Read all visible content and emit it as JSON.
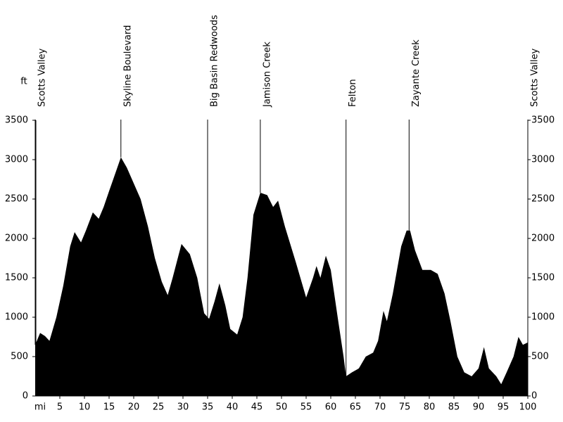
{
  "chart_data": {
    "type": "area",
    "y_label": "ft",
    "x_label": "mi",
    "color": "#000000",
    "xlim": [
      0,
      100
    ],
    "ylim": [
      0,
      3500
    ],
    "xticks": [
      5,
      10,
      15,
      20,
      25,
      30,
      35,
      40,
      45,
      50,
      55,
      60,
      65,
      70,
      75,
      80,
      85,
      90,
      95,
      100
    ],
    "yticks": [
      0,
      500,
      1000,
      1500,
      2000,
      2500,
      3000,
      3500
    ],
    "waypoints": [
      {
        "label": "Scotts Valley",
        "x": 0
      },
      {
        "label": "Skyline Boulevard",
        "x": 17.4
      },
      {
        "label": "Big Basin Redwoods",
        "x": 35.0
      },
      {
        "label": "Jamison Creek",
        "x": 45.7
      },
      {
        "label": "Felton",
        "x": 63.1
      },
      {
        "label": "Zayante Creek",
        "x": 75.9
      },
      {
        "label": "Scotts Valley",
        "x": 100
      }
    ],
    "series": [
      {
        "x": [
          0,
          1,
          2,
          2.9,
          4.3,
          5.7,
          7.1,
          8,
          9.3,
          10.3,
          11.7,
          12.9,
          13.9,
          15,
          16.4,
          17.4,
          18.6,
          20,
          21.4,
          22.9,
          24.3,
          25.7,
          26.9,
          27.9,
          29.7,
          31.4,
          32.9,
          34.3,
          35.3,
          36.4,
          37.4,
          38.6,
          39.6,
          41,
          42.1,
          43.1,
          44.3,
          45.7,
          47.1,
          48.3,
          49.3,
          50.7,
          52.9,
          55,
          56.4,
          57.1,
          57.9,
          59,
          60,
          61.4,
          62.6,
          63.1,
          64.3,
          65.7,
          67.1,
          68.6,
          69.6,
          70.7,
          71.4,
          72.6,
          74.3,
          75.4,
          76.1,
          77.1,
          78.6,
          80.3,
          81.7,
          83.1,
          84.3,
          85.7,
          87.1,
          88.6,
          90,
          91.1,
          92.1,
          93.6,
          94.6,
          95.7,
          97.1,
          98.1,
          99,
          100
        ],
        "values": [
          650,
          800,
          760,
          700,
          1000,
          1400,
          1900,
          2080,
          1950,
          2100,
          2330,
          2250,
          2400,
          2600,
          2850,
          3030,
          2900,
          2700,
          2500,
          2150,
          1750,
          1450,
          1280,
          1500,
          1930,
          1800,
          1500,
          1050,
          980,
          1200,
          1430,
          1150,
          850,
          780,
          1000,
          1500,
          2300,
          2580,
          2550,
          2400,
          2480,
          2150,
          1700,
          1250,
          1500,
          1650,
          1500,
          1780,
          1600,
          1000,
          500,
          250,
          300,
          350,
          500,
          550,
          700,
          1080,
          950,
          1300,
          1900,
          2100,
          2100,
          1850,
          1600,
          1600,
          1550,
          1300,
          950,
          500,
          300,
          250,
          350,
          620,
          350,
          250,
          150,
          300,
          500,
          750,
          650,
          680
        ]
      }
    ]
  }
}
